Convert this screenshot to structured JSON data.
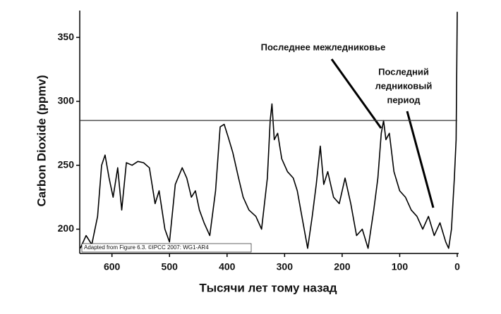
{
  "chart_data": {
    "type": "line",
    "y_label": "Carbon Dioxide (ppmv)",
    "x_label": "Тысячи лет тому назад",
    "annotations": {
      "interglacial": "Последнее межледниковье",
      "glacial": [
        "Последний",
        "ледниковый",
        "период"
      ],
      "credit": "Adapted from Figure 6.3. ©IPCC 2007: WG1-AR4"
    },
    "reference_line": 285,
    "xlim": [
      656,
      0
    ],
    "ylim": [
      181,
      371
    ],
    "xticks": [
      600,
      500,
      400,
      300,
      200,
      100,
      0
    ],
    "yticks": [
      200,
      250,
      300,
      350
    ],
    "color": "#000000",
    "x": [
      655,
      645,
      635,
      625,
      618,
      612,
      605,
      598,
      590,
      583,
      575,
      565,
      555,
      545,
      535,
      525,
      518,
      508,
      500,
      490,
      478,
      470,
      462,
      455,
      448,
      440,
      430,
      420,
      412,
      405,
      398,
      390,
      380,
      372,
      362,
      350,
      340,
      330,
      325,
      322,
      318,
      312,
      305,
      295,
      285,
      278,
      270,
      260,
      252,
      245,
      238,
      232,
      225,
      215,
      205,
      195,
      185,
      175,
      165,
      155,
      145,
      138,
      132,
      128,
      124,
      118,
      110,
      100,
      90,
      80,
      70,
      60,
      50,
      40,
      30,
      20,
      15,
      10,
      5,
      2,
      0
    ],
    "values": [
      185,
      195,
      188,
      210,
      250,
      258,
      240,
      225,
      248,
      215,
      252,
      250,
      253,
      252,
      248,
      220,
      230,
      200,
      190,
      235,
      248,
      240,
      225,
      230,
      215,
      205,
      195,
      230,
      280,
      282,
      272,
      260,
      240,
      225,
      215,
      210,
      200,
      240,
      285,
      298,
      270,
      275,
      255,
      245,
      240,
      230,
      210,
      185,
      210,
      235,
      265,
      235,
      245,
      225,
      220,
      240,
      220,
      195,
      200,
      185,
      215,
      240,
      275,
      285,
      270,
      275,
      245,
      230,
      225,
      215,
      210,
      200,
      210,
      195,
      205,
      190,
      185,
      200,
      240,
      270,
      370
    ]
  }
}
